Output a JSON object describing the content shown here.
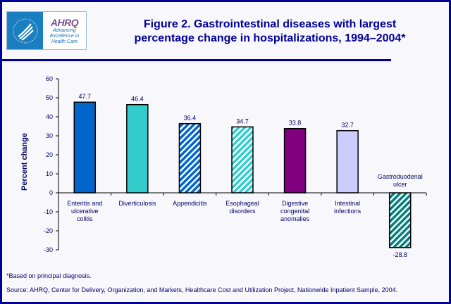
{
  "header": {
    "logo_text": {
      "brand": "AHRQ",
      "tagline": "Advancing Excellence in Health Care"
    },
    "title_line1": "Figure 2. Gastrointestinal diseases with largest",
    "title_line2": "percentage change in hospitalizations, 1994–2004*"
  },
  "chart_data": {
    "type": "bar",
    "title": "Figure 2. Gastrointestinal diseases with largest percentage change in hospitalizations, 1994–2004*",
    "xlabel": "",
    "ylabel": "Percent change",
    "ylim": [
      -30,
      60
    ],
    "yticks": [
      60,
      50,
      40,
      30,
      20,
      10,
      0,
      -10,
      -20,
      -30
    ],
    "grid": false,
    "categories": [
      [
        "Enteritis and",
        "ulcerative",
        "colitis"
      ],
      [
        "Diverticulosis"
      ],
      [
        "Appendicitis"
      ],
      [
        "Esophageal",
        "disorders"
      ],
      [
        "Digestive",
        "congenital",
        "anomalies"
      ],
      [
        "Intestinal",
        "infections"
      ],
      [
        "Gastroduodenal",
        "ulcer"
      ]
    ],
    "values": [
      47.7,
      46.4,
      36.4,
      34.7,
      33.8,
      32.7,
      -28.8
    ],
    "data_labels": [
      "47.7",
      "46.4",
      "36.4",
      "34.7",
      "33.8",
      "32.7",
      "-28.8"
    ],
    "colors": [
      "#0066CC",
      "#33CCCC",
      "#0066CC",
      "#33CCCC",
      "#800080",
      "#CCCCFF",
      "#008080"
    ],
    "hatched": [
      false,
      false,
      true,
      true,
      false,
      false,
      true
    ]
  },
  "footnote": "*Based on principal diagnosis.",
  "source": "Source: AHRQ, Center for Delivery, Organization, and Markets, Healthcare Cost and Utilization Project, Nationwide Inpatient Sample, 2004."
}
